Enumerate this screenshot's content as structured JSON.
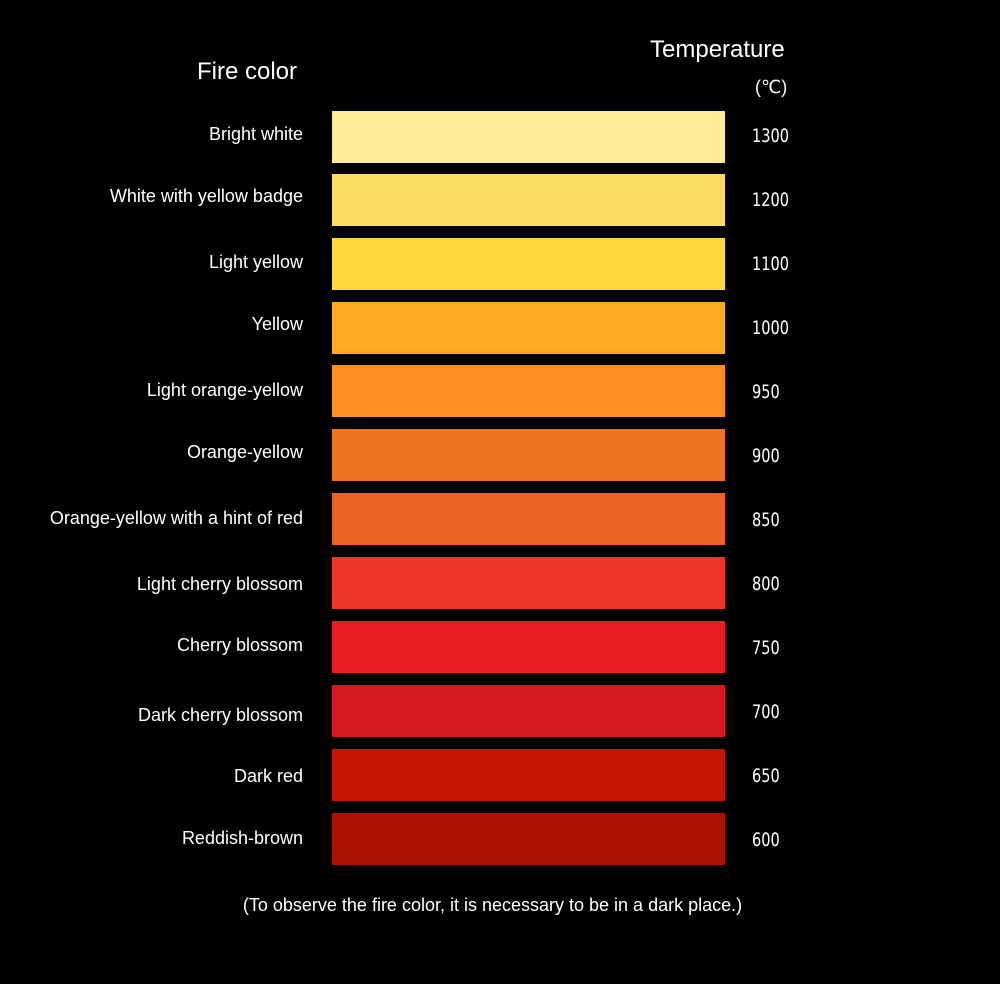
{
  "headers": {
    "fire_color": "Fire color",
    "temperature": "Temperature",
    "unit": "(℃)"
  },
  "rows": [
    {
      "label": "Bright white",
      "temperature": "1300",
      "color": "#FFEC98"
    },
    {
      "label": "White with yellow badge",
      "temperature": "1200",
      "color": "#FEDB62"
    },
    {
      "label": "Light yellow",
      "temperature": "1100",
      "color": "#FFD83A"
    },
    {
      "label": "Yellow",
      "temperature": "1000",
      "color": "#FDAA22"
    },
    {
      "label": "Light orange-yellow",
      "temperature": "950",
      "color": "#FC8F1F"
    },
    {
      "label": "Orange-yellow",
      "temperature": "900",
      "color": "#EC7421"
    },
    {
      "label": "Orange-yellow with a hint of red",
      "temperature": "850",
      "color": "#EC6223"
    },
    {
      "label": "Light cherry blossom",
      "temperature": "800",
      "color": "#EE352A"
    },
    {
      "label": "Cherry blossom",
      "temperature": "750",
      "color": "#EC1C24"
    },
    {
      "label": "Dark cherry blossom",
      "temperature": "700",
      "color": "#D4191F"
    },
    {
      "label": "Dark red",
      "temperature": "650",
      "color": "#C61400"
    },
    {
      "label": "Reddish-brown",
      "temperature": "600",
      "color": "#AB1100"
    }
  ],
  "footnote": "(To observe the fire color, it is necessary to be in a dark place.)"
}
